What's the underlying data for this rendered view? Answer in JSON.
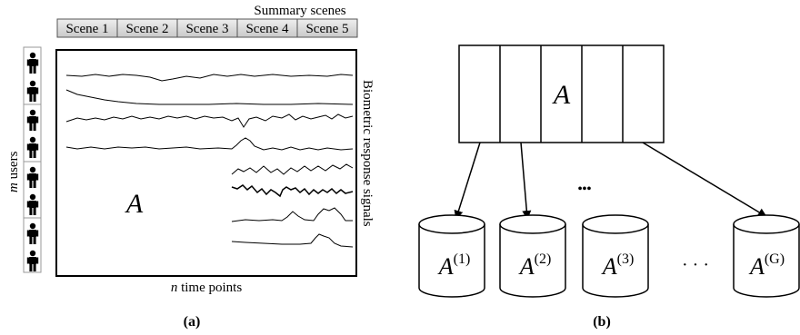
{
  "panel_a": {
    "header": "Summary scenes",
    "scenes": [
      "Scene 1",
      "Scene 2",
      "Scene 3",
      "Scene 4",
      "Scene 5"
    ],
    "matrix_symbol": "A",
    "users_label_var": "m",
    "users_label_text": " users",
    "time_label_var": "n",
    "time_label_text": " time points",
    "signals_label": "Biometric response signals",
    "caption": "(a)"
  },
  "panel_b": {
    "matrix_symbol": "A",
    "parts": [
      {
        "base": "A",
        "sup": "(1)"
      },
      {
        "base": "A",
        "sup": "(2)"
      },
      {
        "base": "A",
        "sup": "(3)"
      },
      {
        "base": "A",
        "sup": "(G)"
      }
    ],
    "ellipsis_dots": "•••",
    "ellipsis": "· · ·",
    "caption": "(b)"
  }
}
